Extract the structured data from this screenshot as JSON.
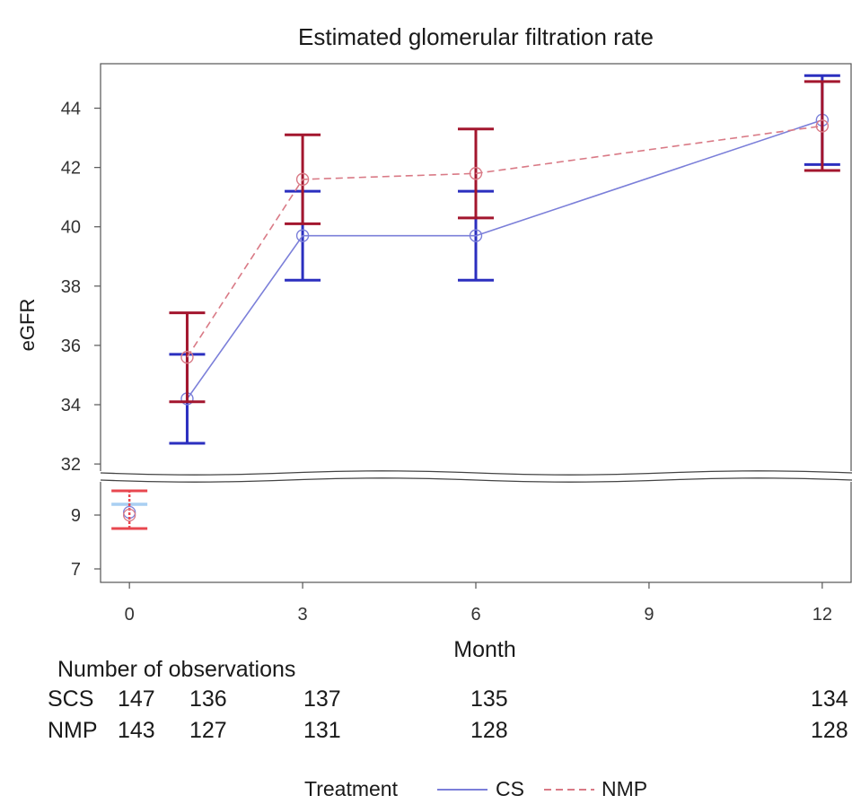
{
  "chart_data": {
    "type": "line",
    "title": "Estimated glomerular filtration rate",
    "xlabel": "Month",
    "ylabel": "eGFR",
    "xlim": [
      -0.5,
      12.5
    ],
    "x_ticks": [
      0,
      3,
      6,
      9,
      12
    ],
    "upper_panel": {
      "ylim": [
        31.7,
        45.5
      ],
      "y_ticks": [
        32,
        34,
        36,
        38,
        40,
        42,
        44
      ]
    },
    "lower_panel": {
      "ylim": [
        6.5,
        10.3
      ],
      "y_ticks": [
        7,
        9
      ]
    },
    "axis_break": "between 9 and 32",
    "series": [
      {
        "name": "CS",
        "color": "#7b7fd9",
        "bar_color": "#2b2fbf",
        "dash": "solid",
        "points": [
          {
            "x": 1,
            "y": 34.2,
            "lo": 32.7,
            "hi": 35.7
          },
          {
            "x": 3,
            "y": 39.7,
            "lo": 38.2,
            "hi": 41.2
          },
          {
            "x": 6,
            "y": 39.7,
            "lo": 38.2,
            "hi": 41.2
          },
          {
            "x": 12,
            "y": 43.6,
            "lo": 42.1,
            "hi": 45.1
          }
        ],
        "baseline": {
          "x": 0,
          "y": 9.1,
          "lo": 9.4,
          "hi": 9.4,
          "bar_color": "#a9cff2"
        }
      },
      {
        "name": "NMP",
        "color": "#d97a86",
        "bar_color": "#a3162e",
        "dash": "dashed",
        "points": [
          {
            "x": 1,
            "y": 35.6,
            "lo": 34.1,
            "hi": 37.1
          },
          {
            "x": 3,
            "y": 41.6,
            "lo": 40.1,
            "hi": 43.1
          },
          {
            "x": 6,
            "y": 41.8,
            "lo": 40.3,
            "hi": 43.3
          },
          {
            "x": 12,
            "y": 43.4,
            "lo": 41.9,
            "hi": 44.9
          }
        ],
        "baseline": {
          "x": 0,
          "y": 9.0,
          "lo": 8.5,
          "hi": 9.9,
          "bar_color": "#e8474f"
        }
      }
    ],
    "observations": {
      "title": "Number of observations",
      "rows": [
        {
          "label": "SCS",
          "counts": [
            {
              "month": 0,
              "n": "147"
            },
            {
              "month": 1,
              "n": "136"
            },
            {
              "month": 3,
              "n": "137"
            },
            {
              "month": 6,
              "n": "135"
            },
            {
              "month": 12,
              "n": "134"
            }
          ]
        },
        {
          "label": "NMP",
          "counts": [
            {
              "month": 0,
              "n": "143"
            },
            {
              "month": 1,
              "n": "127"
            },
            {
              "month": 3,
              "n": "131"
            },
            {
              "month": 6,
              "n": "128"
            },
            {
              "month": 12,
              "n": "128"
            }
          ]
        }
      ]
    },
    "legend": {
      "title": "Treatment",
      "items": [
        "CS",
        "NMP"
      ],
      "position": "bottom"
    }
  }
}
